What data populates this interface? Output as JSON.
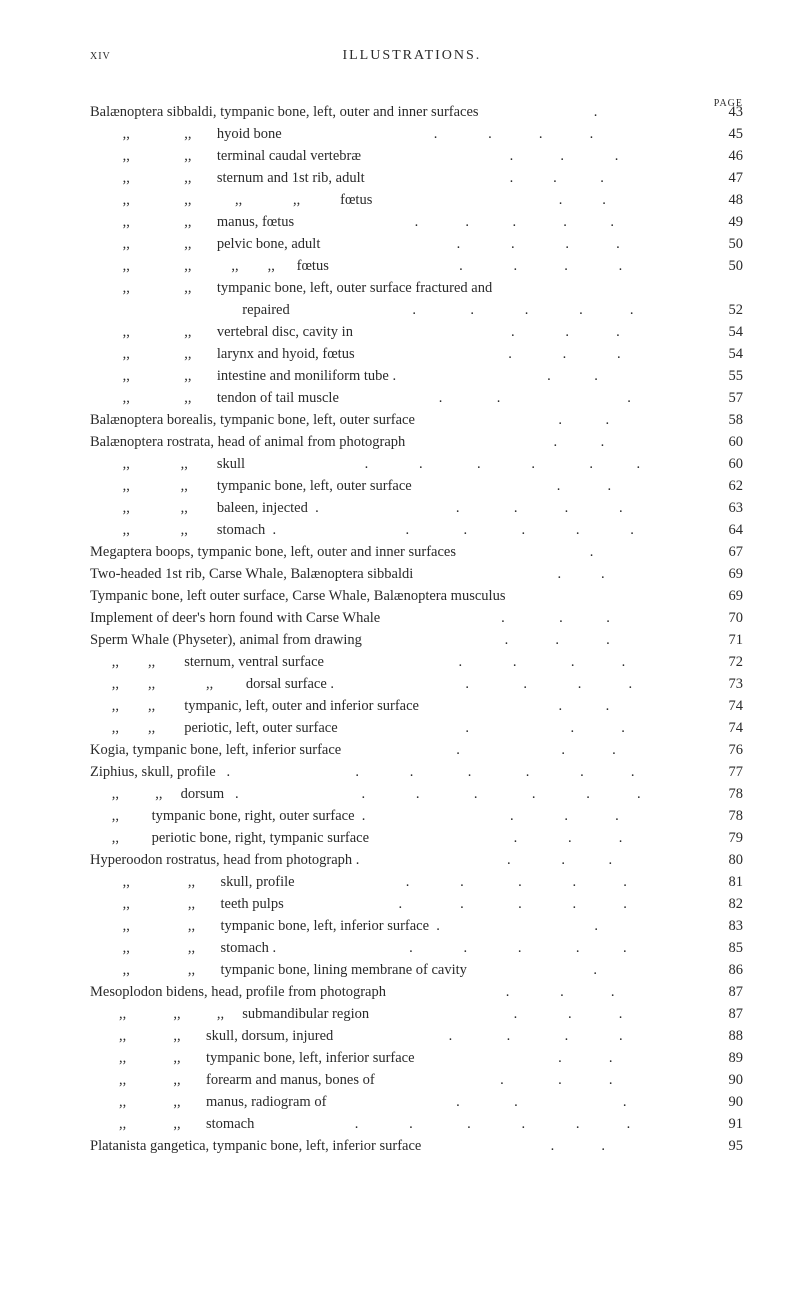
{
  "header": {
    "page_roman": "xiv",
    "title": "ILLUSTRATIONS.",
    "page_col_label": "PAGE"
  },
  "entries": [
    {
      "indent": 0,
      "text": "Balænoptera sibbaldi, tympanic bone, left, outer and inner surfaces",
      "leader": " .",
      "page": "43"
    },
    {
      "indent": 2,
      "text": "         ,,               ,,       hyoid bone",
      "leader": "          .              .             .             .",
      "page": "45"
    },
    {
      "indent": 2,
      "text": "         ,,               ,,       terminal caudal vertebræ",
      "leader": "                .             .              .",
      "page": "46"
    },
    {
      "indent": 2,
      "text": "         ,,               ,,       sternum and 1st rib, adult",
      "leader": "           .           .            .",
      "page": "47"
    },
    {
      "indent": 2,
      "text": "         ,,               ,,            ,,              ,,           fœtus",
      "leader": "                       .           .",
      "page": "48"
    },
    {
      "indent": 2,
      "text": "         ,,               ,,       manus, fœtus",
      "leader": "       .             .            .             .            .",
      "page": "49"
    },
    {
      "indent": 2,
      "text": "         ,,               ,,       pelvic bone, adult",
      "leader": "             .              .              .             .",
      "page": "50"
    },
    {
      "indent": 2,
      "text": "         ,,               ,,           ,,        ,,      fœtus",
      "leader": "            .              .             .              .",
      "page": "50"
    },
    {
      "indent": 2,
      "text": "         ,,               ,,       tympanic bone, left, outer surface fractured and",
      "leader": "",
      "page": ""
    },
    {
      "indent": 2,
      "text": "                                          repaired",
      "leader": "             .               .              .              .             .",
      "page": "52"
    },
    {
      "indent": 2,
      "text": "         ,,               ,,       vertebral disc, cavity in",
      "leader": "                   .              .             .",
      "page": "54"
    },
    {
      "indent": 2,
      "text": "         ,,               ,,       larynx and hyoid, fœtus",
      "leader": "                  .              .              .",
      "page": "54"
    },
    {
      "indent": 2,
      "text": "         ,,               ,,       intestine and moniliform tube .",
      "leader": "           .            .",
      "page": "55"
    },
    {
      "indent": 2,
      "text": "         ,,               ,,       tendon of tail muscle",
      "leader": "      .               .                                   .",
      "page": "57"
    },
    {
      "indent": 0,
      "text": "Balænoptera borealis, tympanic bone, left, outer surface",
      "leader": "            .            .",
      "page": "58"
    },
    {
      "indent": 0,
      "text": "Balænoptera rostrata, head of animal from photograph",
      "leader": "            .            .",
      "page": "60"
    },
    {
      "indent": 2,
      "text": "         ,,              ,,        skull",
      "leader": "              .              .               .              .               .            .",
      "page": "60"
    },
    {
      "indent": 2,
      "text": "         ,,              ,,        tympanic bone, left, outer surface",
      "leader": "             .             .",
      "page": "62"
    },
    {
      "indent": 2,
      "text": "         ,,              ,,        baleen, injected  .",
      "leader": "              .               .             .              .",
      "page": "63"
    },
    {
      "indent": 2,
      "text": "         ,,              ,,        stomach  .",
      "leader": "               .               .               .              .              .",
      "page": "64"
    },
    {
      "indent": 0,
      "text": "Megaptera boops, tympanic bone, left, outer and inner surfaces",
      "leader": "     .",
      "page": "67"
    },
    {
      "indent": 0,
      "text": "Two-headed 1st rib, Carse Whale, Balænoptera sibbaldi",
      "leader": "           .           .",
      "page": "69"
    },
    {
      "indent": 0,
      "text": "Tympanic bone, left outer surface, Carse Whale, Balænoptera musculus",
      "leader": "",
      "page": "69"
    },
    {
      "indent": 0,
      "text": "Implement of deer's horn found with Carse Whale",
      "leader": "      .               .            .",
      "page": "70"
    },
    {
      "indent": 0,
      "text": "Sperm Whale (Physeter), animal from drawing",
      "leader": "            .             .             .",
      "page": "71"
    },
    {
      "indent": 2,
      "text": "      ,,        ,,        sternum, ventral surface",
      "leader": "              .              .               .             .",
      "page": "72"
    },
    {
      "indent": 2,
      "text": "      ,,        ,,              ,,         dorsal surface .",
      "leader": "               .               .              .             .",
      "page": "73"
    },
    {
      "indent": 2,
      "text": "      ,,        ,,        tympanic, left, outer and inferior surface",
      "leader": "           .            .",
      "page": "74"
    },
    {
      "indent": 2,
      "text": "      ,,        ,,        periotic, left, outer surface",
      "leader": "            .                            .             .",
      "page": "74"
    },
    {
      "indent": 0,
      "text": "Kogia, tympanic bone, left, inferior surface",
      "leader": "      .                            .             .",
      "page": "76"
    },
    {
      "indent": 0,
      "text": "Ziphius, skull, profile   .",
      "leader": "              .              .               .               .              .             .",
      "page": "77"
    },
    {
      "indent": 2,
      "text": "      ,,          ,,     dorsum   .",
      "leader": "               .              .               .               .              .             .",
      "page": "78"
    },
    {
      "indent": 2,
      "text": "      ,,         tympanic bone, right, outer surface  .",
      "leader": "               .              .             .",
      "page": "78"
    },
    {
      "indent": 2,
      "text": "      ,,         periotic bone, right, tympanic surface",
      "leader": "                .              .             .",
      "page": "79"
    },
    {
      "indent": 0,
      "text": "Hyperoodon rostratus, head from photograph .",
      "leader": "              .              .            .",
      "page": "80"
    },
    {
      "indent": 2,
      "text": "         ,,                ,,       skull, profile",
      "leader": "        .              .               .              .             .",
      "page": "81"
    },
    {
      "indent": 2,
      "text": "         ,,                ,,       teeth pulps",
      "leader": "         .                .               .              .             .",
      "page": "82"
    },
    {
      "indent": 2,
      "text": "         ,,                ,,       tympanic bone, left, inferior surface  .",
      "leader": "            .",
      "page": "83"
    },
    {
      "indent": 2,
      "text": "         ,,                ,,       stomach .",
      "leader": "              .              .              .               .            .",
      "page": "85"
    },
    {
      "indent": 2,
      "text": "         ,,                ,,       tympanic bone, lining membrane of cavity",
      "leader": "    .",
      "page": "86"
    },
    {
      "indent": 0,
      "text": "Mesoplodon bidens, head, profile from photograph",
      "leader": "       .              .             .",
      "page": "87"
    },
    {
      "indent": 2,
      "text": "        ,,             ,,          ,,     submandibular region",
      "leader": "                .              .             .",
      "page": "87"
    },
    {
      "indent": 2,
      "text": "        ,,             ,,       skull, dorsum, injured",
      "leader": "        .               .               .              .",
      "page": "88"
    },
    {
      "indent": 2,
      "text": "        ,,             ,,       tympanic bone, left, inferior surface",
      "leader": "             .             .",
      "page": "89"
    },
    {
      "indent": 2,
      "text": "        ,,             ,,       forearm and manus, bones of",
      "leader": "        .               .             .",
      "page": "90"
    },
    {
      "indent": 2,
      "text": "        ,,             ,,       manus, radiogram of",
      "leader": "             .               .                             .",
      "page": "90"
    },
    {
      "indent": 2,
      "text": "        ,,             ,,       stomach",
      "leader": "      .              .               .              .              .             .",
      "page": "91"
    },
    {
      "indent": 0,
      "text": "Platanista gangetica, tympanic bone, left, inferior surface",
      "leader": "       .             .",
      "page": "95"
    }
  ]
}
